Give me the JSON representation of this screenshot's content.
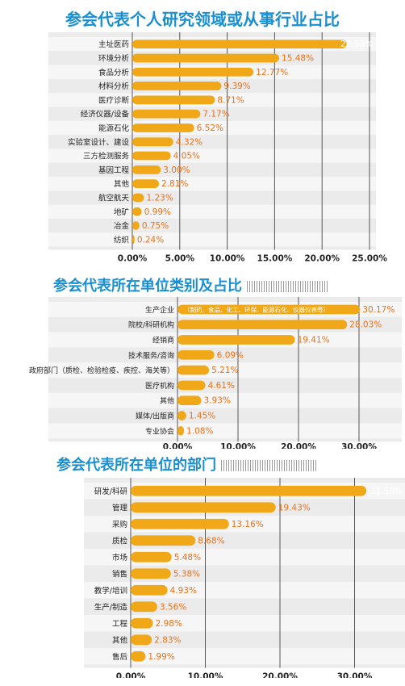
{
  "chart_data": [
    {
      "type": "bar",
      "orientation": "horizontal",
      "title": "参会代表个人研究领域或从事行业占比",
      "categories": [
        "主址医药",
        "环境分析",
        "食品分析",
        "材料分析",
        "医疗诊断",
        "经济仪器/设备",
        "能源石化",
        "实验室设计、建设",
        "三方检测服务",
        "基因工程",
        "其他",
        "航空航天",
        "地矿",
        "冶金",
        "纺织"
      ],
      "values": [
        22.58,
        15.48,
        12.77,
        9.39,
        8.71,
        7.17,
        6.52,
        4.32,
        4.05,
        3.0,
        2.81,
        1.23,
        0.99,
        0.75,
        0.24
      ],
      "value_labels": [
        "22.58%",
        "15.48%",
        "12.77%",
        "9.39%",
        "8.71%",
        "7.17%",
        "6.52%",
        "4.32%",
        "4.05%",
        "3.00%",
        "2.81%",
        "1.23%",
        "0.99%",
        "0.75%",
        "0.24%"
      ],
      "ticks": [
        0,
        5,
        10,
        15,
        20,
        25
      ],
      "tick_labels": [
        "0.00%",
        "5.00%",
        "10.00%",
        "15.00%",
        "20.00%",
        "25.00%"
      ],
      "xlim": [
        0,
        25
      ],
      "grid": true,
      "label_color_highlight": "#ffffff"
    },
    {
      "type": "bar",
      "orientation": "horizontal",
      "title": "参会代表所在单位类别及占比",
      "categories": [
        "生产企业",
        "院校/科研机构",
        "经销商",
        "技术服务/咨询",
        "政府部门（质检、检验检疫、疾控、海关等）",
        "医疗机构",
        "其他",
        "媒体/出版商",
        "专业协会"
      ],
      "values": [
        30.17,
        28.03,
        19.41,
        6.09,
        5.21,
        4.61,
        3.93,
        1.45,
        1.08
      ],
      "value_labels": [
        "30.17%",
        "28.03%",
        "19.41%",
        "6.09%",
        "5.21%",
        "4.61%",
        "3.93%",
        "1.45%",
        "1.08%"
      ],
      "bar_note": "（制药、食品、化工、环保、能源石化、仪器仪表等）",
      "ticks": [
        0,
        10,
        20,
        30
      ],
      "tick_labels": [
        "0.00%",
        "10.00%",
        "20.00%",
        "30.00%"
      ],
      "xlim": [
        0,
        36
      ],
      "grid": true
    },
    {
      "type": "bar",
      "orientation": "horizontal",
      "title": "参会代表所在单位的部门",
      "categories": [
        "研发/科研",
        "管理",
        "采购",
        "质检",
        "市场",
        "销售",
        "教学/培训",
        "生产/制造",
        "工程",
        "其他",
        "售后"
      ],
      "values": [
        31.58,
        19.43,
        13.16,
        8.68,
        5.48,
        5.38,
        4.93,
        3.56,
        2.98,
        2.83,
        1.99
      ],
      "value_labels": [
        "31.58%",
        "19.43%",
        "13.16%",
        "8.68%",
        "5.48%",
        "5.38%",
        "4.93%",
        "3.56%",
        "2.98%",
        "2.83%",
        "1.99%"
      ],
      "ticks": [
        0,
        10,
        20,
        30
      ],
      "tick_labels": [
        "0.00%",
        "10.00%",
        "20.00%",
        "30.00%"
      ],
      "xlim": [
        0,
        36
      ],
      "grid": true
    }
  ],
  "colors": {
    "title": "#1a8fd0",
    "bar": "#f0a818",
    "value_label": "#e8711c",
    "panel_bg": "#ebebeb",
    "band": "#e3e3e3",
    "grid": "#555555",
    "text": "#222222"
  }
}
